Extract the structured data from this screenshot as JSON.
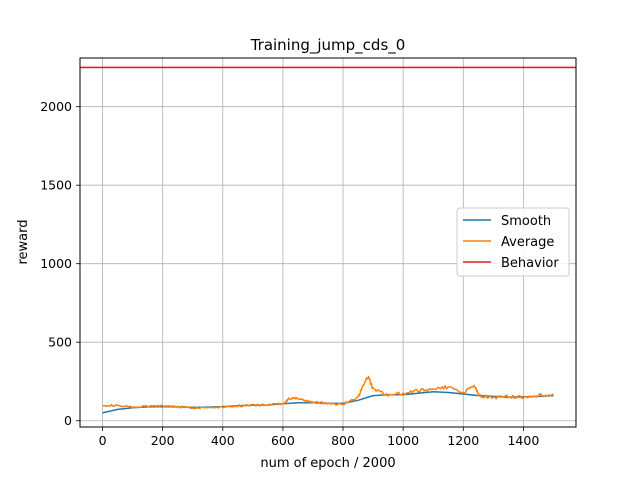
{
  "chart_data": {
    "type": "line",
    "title": "Training_jump_cds_0",
    "xlabel": "num of epoch / 2000",
    "ylabel": "reward",
    "xlim": [
      -75,
      1575
    ],
    "ylim": [
      -40,
      2310
    ],
    "xticks": [
      0,
      200,
      400,
      600,
      800,
      1000,
      1200,
      1400
    ],
    "yticks": [
      0,
      500,
      1000,
      1500,
      2000
    ],
    "grid": true,
    "legend_position": "center-right",
    "series": [
      {
        "name": "Smooth",
        "color": "#1f77b4",
        "x": [
          0,
          50,
          100,
          150,
          200,
          250,
          300,
          350,
          400,
          450,
          500,
          550,
          600,
          650,
          700,
          750,
          800,
          850,
          900,
          950,
          1000,
          1050,
          1100,
          1150,
          1200,
          1250,
          1300,
          1350,
          1400,
          1450,
          1500
        ],
        "y": [
          50,
          72,
          82,
          88,
          90,
          88,
          85,
          87,
          90,
          95,
          98,
          100,
          108,
          115,
          115,
          110,
          110,
          130,
          160,
          165,
          165,
          175,
          185,
          180,
          170,
          160,
          155,
          150,
          152,
          155,
          160
        ]
      },
      {
        "name": "Average",
        "color": "#ff7f0e",
        "x": [
          0,
          50,
          100,
          150,
          200,
          250,
          300,
          350,
          400,
          450,
          500,
          550,
          600,
          620,
          650,
          680,
          700,
          750,
          800,
          850,
          870,
          885,
          900,
          950,
          1000,
          1050,
          1100,
          1150,
          1200,
          1240,
          1250,
          1300,
          1350,
          1400,
          1450,
          1500
        ],
        "y": [
          100,
          95,
          85,
          92,
          95,
          90,
          82,
          85,
          88,
          95,
          98,
          102,
          110,
          140,
          145,
          125,
          120,
          110,
          105,
          150,
          240,
          280,
          200,
          165,
          175,
          190,
          205,
          215,
          180,
          220,
          160,
          150,
          155,
          150,
          160,
          170
        ]
      },
      {
        "name": "Behavior",
        "color": "#e0201b",
        "x": [
          -75,
          1575
        ],
        "y": [
          2250,
          2250
        ]
      }
    ]
  }
}
